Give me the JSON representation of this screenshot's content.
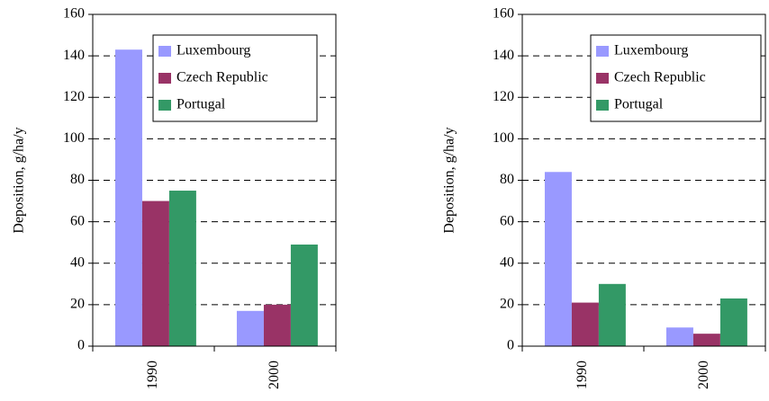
{
  "chart_data": [
    {
      "type": "bar",
      "ylabel": "Deposition, g/ha/y",
      "categories": [
        "1990",
        "2000"
      ],
      "series": [
        {
          "name": "Luxembourg",
          "color": "#9999ff",
          "values": [
            143,
            17
          ]
        },
        {
          "name": "Czech Republic",
          "color": "#993366",
          "values": [
            70,
            20
          ]
        },
        {
          "name": "Portugal",
          "color": "#339966",
          "values": [
            75,
            49
          ]
        }
      ],
      "ylim": [
        0,
        160
      ],
      "yticks": [
        0,
        20,
        40,
        60,
        80,
        100,
        120,
        140,
        160
      ],
      "grid": true,
      "legend": "top-right"
    },
    {
      "type": "bar",
      "ylabel": "Deposition, g/ha/y",
      "categories": [
        "1990",
        "2000"
      ],
      "series": [
        {
          "name": "Luxembourg",
          "color": "#9999ff",
          "values": [
            84,
            9
          ]
        },
        {
          "name": "Czech Republic",
          "color": "#993366",
          "values": [
            21,
            6
          ]
        },
        {
          "name": "Portugal",
          "color": "#339966",
          "values": [
            30,
            23
          ]
        }
      ],
      "ylim": [
        0,
        160
      ],
      "yticks": [
        0,
        20,
        40,
        60,
        80,
        100,
        120,
        140,
        160
      ],
      "grid": true,
      "legend": "top-right"
    }
  ]
}
